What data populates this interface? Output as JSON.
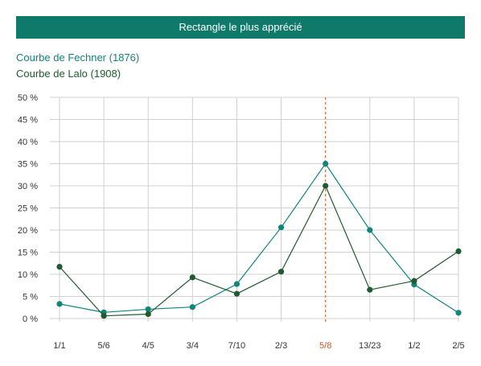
{
  "colors": {
    "header_bg": "#0f7a6a",
    "fechner": "#10857a",
    "lalo": "#1f5a30",
    "highlight": "#d4541c",
    "grid": "#d0d0d0"
  },
  "chart_data": {
    "type": "line",
    "title": "Rectangle le plus apprécié",
    "categories": [
      "1/1",
      "5/6",
      "4/5",
      "3/4",
      "7/10",
      "2/3",
      "5/8",
      "13/23",
      "1/2",
      "2/5"
    ],
    "highlighted_category": "5/8",
    "y_ticks": [
      "0 %",
      "5 %",
      "10 %",
      "15 %",
      "20 %",
      "25 %",
      "30 %",
      "35 %",
      "40 %",
      "45 %",
      "50 %"
    ],
    "ylim": [
      0,
      50
    ],
    "grid": true,
    "legend_position": "top-left",
    "series": [
      {
        "name": "Courbe de Fechner (1876)",
        "color": "#10857a",
        "values": [
          3.3,
          1.4,
          2.1,
          2.6,
          7.8,
          20.6,
          35.0,
          20.0,
          7.7,
          1.3
        ]
      },
      {
        "name": "Courbe de Lalo (1908)",
        "color": "#1f5a30",
        "values": [
          11.7,
          0.6,
          1.0,
          9.3,
          5.6,
          10.6,
          30.0,
          6.5,
          8.5,
          15.2
        ]
      }
    ]
  }
}
